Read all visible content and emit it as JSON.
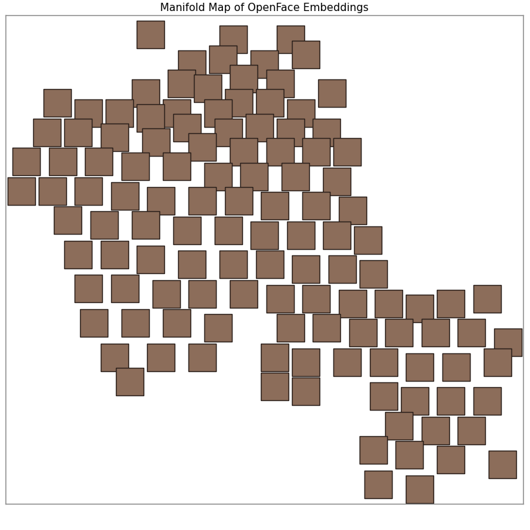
{
  "chart_data": {
    "type": "scatter",
    "title": "Manifold Map of OpenFace Embeddings",
    "tick_labels": false,
    "marker": "square",
    "color": "#8c6d5a",
    "xlim": [
      0,
      100
    ],
    "ylim": [
      0,
      100
    ],
    "x": [
      28,
      44,
      55,
      58,
      36,
      42,
      50,
      46,
      34,
      39,
      53,
      63,
      27,
      45,
      51,
      57,
      41,
      33,
      10,
      16,
      22,
      28,
      35,
      43,
      49,
      55,
      62,
      8,
      14,
      21,
      29,
      38,
      46,
      53,
      60,
      66,
      4,
      11,
      18,
      25,
      33,
      41,
      48,
      56,
      64,
      3,
      9,
      16,
      23,
      30,
      38,
      45,
      52,
      60,
      67,
      12,
      19,
      27,
      35,
      43,
      50,
      57,
      64,
      70,
      14,
      21,
      28,
      36,
      44,
      51,
      58,
      65,
      71,
      16,
      23,
      31,
      38,
      46,
      53,
      60,
      67,
      74,
      80,
      86,
      93,
      17,
      25,
      33,
      41,
      55,
      62,
      69,
      76,
      83,
      90,
      97,
      21,
      30,
      38,
      52,
      58,
      66,
      73,
      80,
      87,
      95,
      24,
      52,
      58,
      73,
      79,
      86,
      93,
      76,
      83,
      90,
      71,
      78,
      86,
      96,
      72,
      80
    ],
    "values": [
      96,
      95,
      95,
      92,
      90,
      91,
      90,
      87,
      86,
      85,
      86,
      84,
      84,
      82,
      82,
      80,
      80,
      80,
      82,
      80,
      80,
      79,
      77,
      76,
      77,
      76,
      76,
      76,
      76,
      75,
      74,
      73,
      72,
      72,
      72,
      72,
      70,
      70,
      70,
      69,
      69,
      67,
      67,
      67,
      66,
      64,
      64,
      64,
      63,
      62,
      62,
      62,
      61,
      61,
      60,
      58,
      57,
      57,
      56,
      56,
      55,
      55,
      55,
      54,
      51,
      51,
      50,
      49,
      49,
      49,
      48,
      48,
      47,
      44,
      44,
      43,
      43,
      43,
      42,
      42,
      41,
      41,
      40,
      41,
      42,
      37,
      37,
      37,
      36,
      36,
      36,
      35,
      35,
      35,
      35,
      33,
      30,
      30,
      30,
      30,
      29,
      29,
      29,
      28,
      28,
      29,
      25,
      24,
      23,
      22,
      21,
      21,
      21,
      16,
      15,
      15,
      11,
      10,
      9,
      8,
      4,
      3
    ]
  }
}
